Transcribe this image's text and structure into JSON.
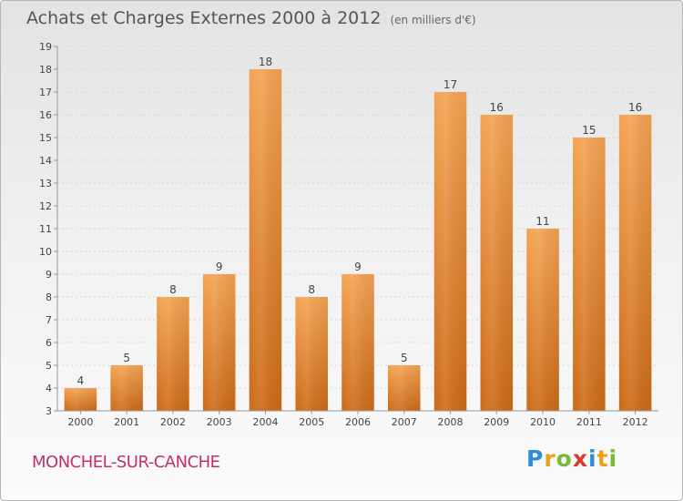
{
  "header": {
    "title": "Achats et Charges Externes 2000 à 2012",
    "subtitle": "(en milliers d'€)"
  },
  "footer": {
    "commune": "MONCHEL-SUR-CANCHE",
    "logo_letters": [
      "P",
      "r",
      "o",
      "x",
      "i",
      "t",
      "i"
    ],
    "logo_colors": [
      "#2f8fd6",
      "#e8a21c",
      "#7bb93a",
      "#d93b2f",
      "#2f8fd6",
      "#e8a21c",
      "#7bb93a"
    ]
  },
  "colors": {
    "bar_top": "#f5a352",
    "bar_bottom": "#cc6a17",
    "axis": "#999999",
    "grid": "#d8d8d8"
  },
  "chart_data": {
    "type": "bar",
    "title": "Achats et Charges Externes 2000 à 2012",
    "subtitle": "(en milliers d'€)",
    "categories": [
      "2000",
      "2001",
      "2002",
      "2003",
      "2004",
      "2005",
      "2006",
      "2007",
      "2008",
      "2009",
      "2010",
      "2011",
      "2012"
    ],
    "values": [
      4,
      5,
      8,
      9,
      18,
      8,
      9,
      5,
      17,
      16,
      11,
      15,
      16
    ],
    "ylim": [
      3,
      19
    ],
    "yticks": [
      3,
      4,
      5,
      6,
      7,
      8,
      9,
      10,
      11,
      12,
      13,
      14,
      15,
      16,
      17,
      18,
      19
    ],
    "grid": true,
    "legend": "none"
  }
}
